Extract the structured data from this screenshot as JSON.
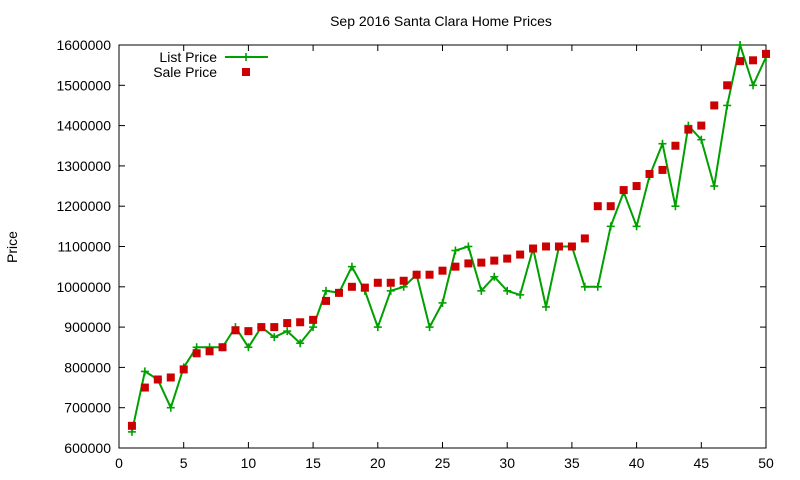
{
  "chart_data": {
    "type": "line",
    "title": "Sep 2016 Santa Clara Home Prices",
    "xlabel": "",
    "ylabel": "Price",
    "xlim": [
      0,
      50
    ],
    "ylim": [
      600000,
      1600000
    ],
    "xticks": [
      0,
      5,
      10,
      15,
      20,
      25,
      30,
      35,
      40,
      45,
      50
    ],
    "yticks": [
      600000,
      700000,
      800000,
      900000,
      1000000,
      1100000,
      1200000,
      1300000,
      1400000,
      1500000,
      1600000
    ],
    "grid": false,
    "legend_position": "top-left",
    "x": [
      1,
      2,
      3,
      4,
      5,
      6,
      7,
      8,
      9,
      10,
      11,
      12,
      13,
      14,
      15,
      16,
      17,
      18,
      19,
      20,
      21,
      22,
      23,
      24,
      25,
      26,
      27,
      28,
      29,
      30,
      31,
      32,
      33,
      34,
      35,
      36,
      37,
      38,
      39,
      40,
      41,
      42,
      43,
      44,
      45,
      46,
      47,
      48,
      49,
      50
    ],
    "series": [
      {
        "name": "List Price",
        "style": "line-plus",
        "color": "#00a000",
        "values": [
          640000,
          790000,
          770000,
          700000,
          800000,
          850000,
          850000,
          850000,
          900000,
          850000,
          900000,
          875000,
          890000,
          860000,
          900000,
          990000,
          985000,
          1050000,
          990000,
          900000,
          990000,
          1000000,
          1030000,
          900000,
          960000,
          1090000,
          1100000,
          990000,
          1025000,
          990000,
          980000,
          1095000,
          950000,
          1100000,
          1100000,
          1000000,
          1000000,
          1150000,
          1235000,
          1150000,
          1275000,
          1355000,
          1200000,
          1400000,
          1365000,
          1250000,
          1450000,
          1600000,
          1500000,
          1570000
        ]
      },
      {
        "name": "Sale Price",
        "style": "square-marker",
        "color": "#cc0000",
        "values": [
          655000,
          750000,
          770000,
          775000,
          795000,
          835000,
          840000,
          850000,
          892000,
          890000,
          900000,
          900000,
          910000,
          912000,
          918000,
          965000,
          985000,
          1000000,
          998000,
          1010000,
          1010000,
          1015000,
          1030000,
          1030000,
          1040000,
          1050000,
          1058000,
          1060000,
          1065000,
          1070000,
          1080000,
          1095000,
          1100000,
          1100000,
          1100000,
          1120000,
          1200000,
          1200000,
          1240000,
          1250000,
          1280000,
          1290000,
          1350000,
          1390000,
          1400000,
          1450000,
          1500000,
          1560000,
          1562000,
          1578000
        ]
      }
    ]
  }
}
